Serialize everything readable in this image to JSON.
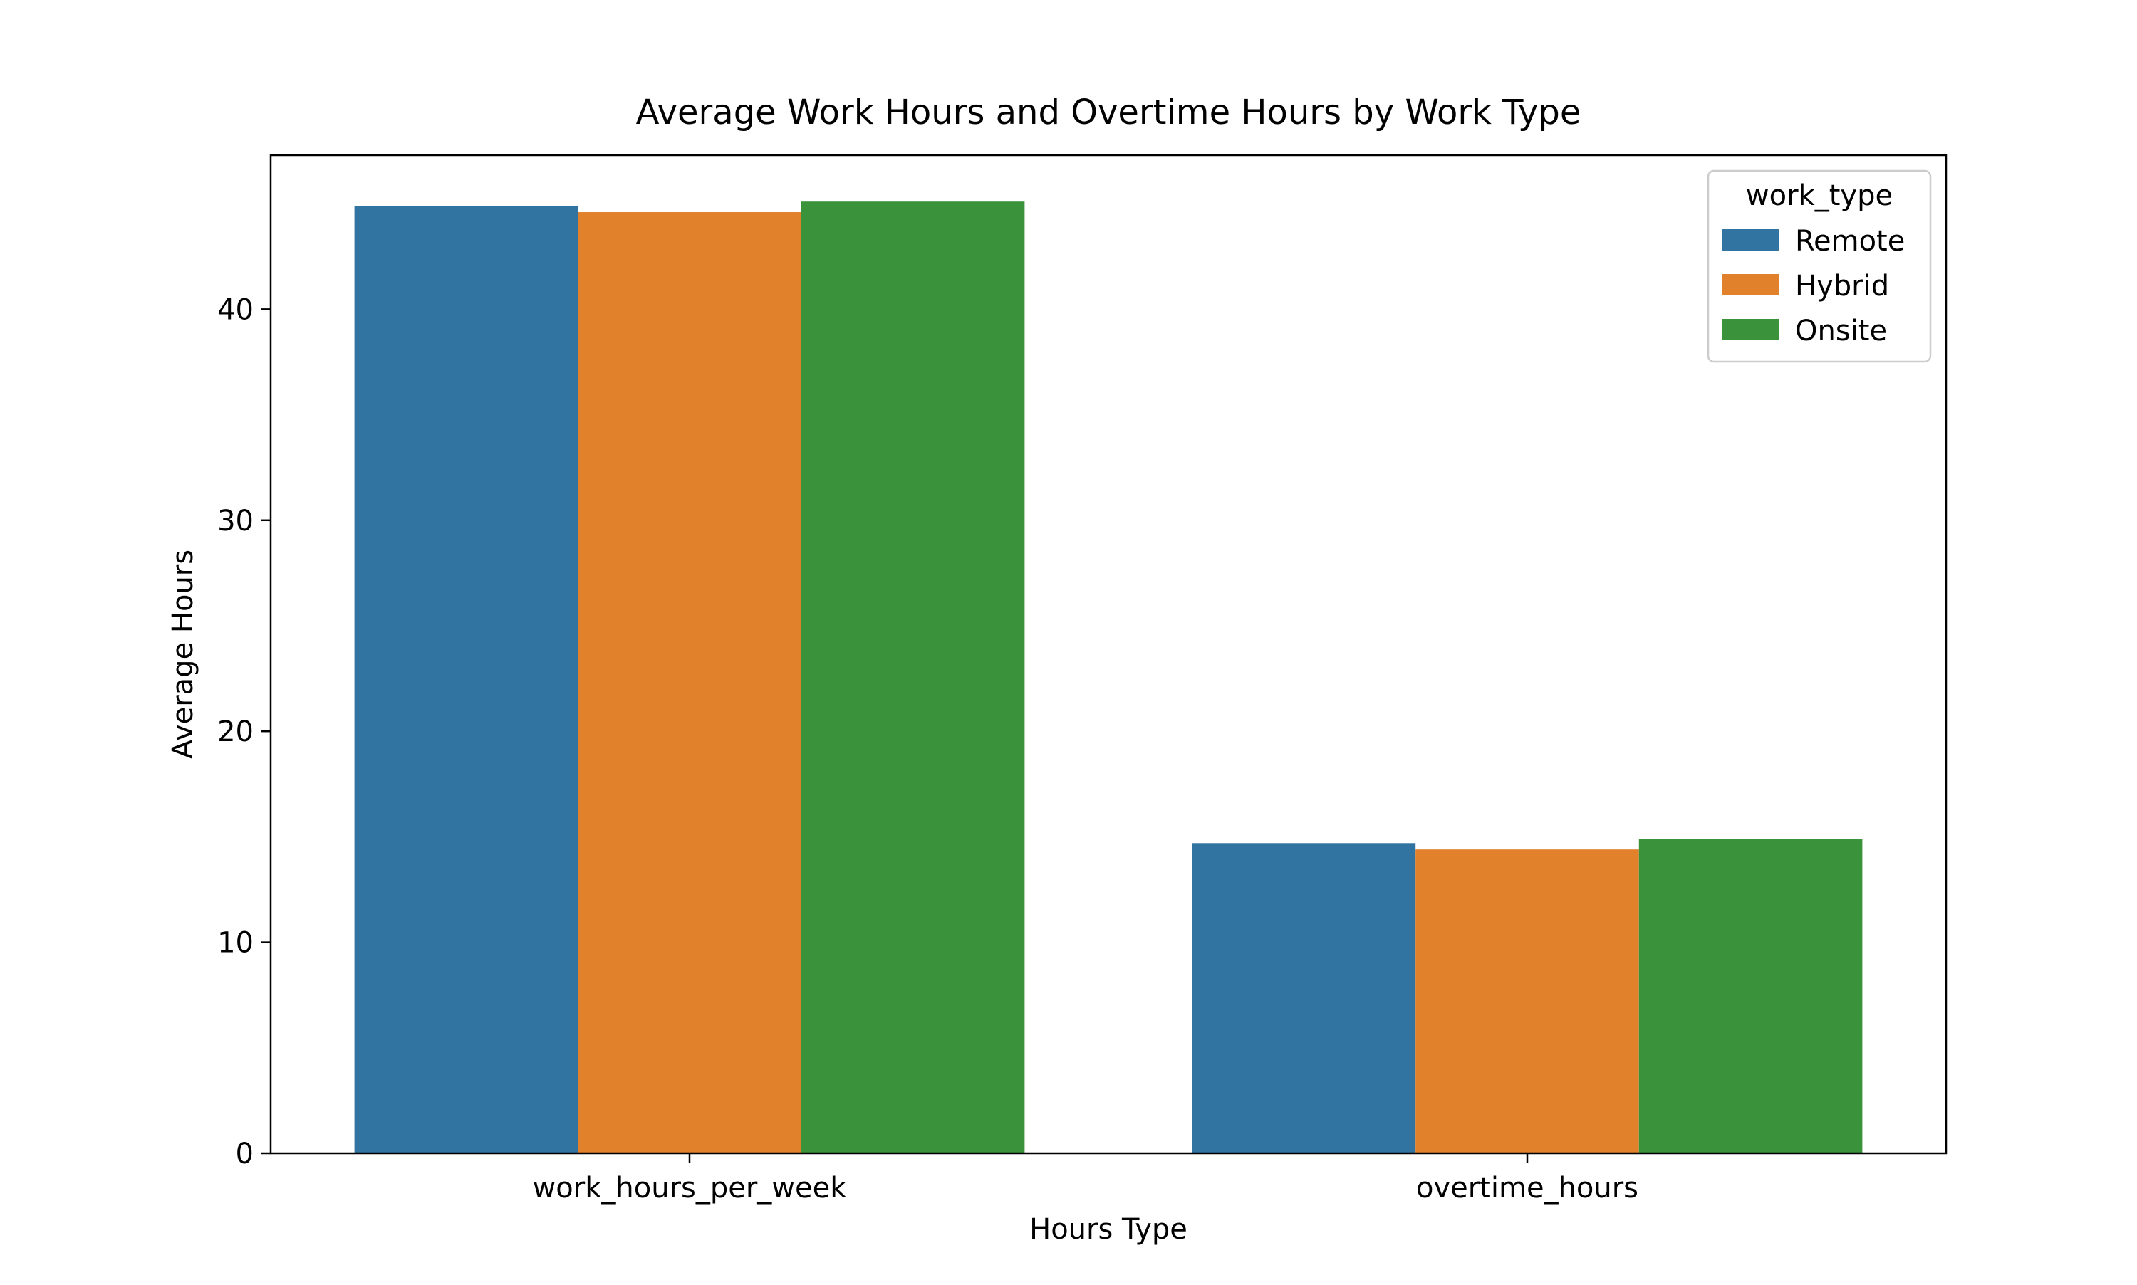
{
  "chart_data": {
    "type": "bar",
    "title": "Average Work Hours and Overtime Hours by Work Type",
    "xlabel": "Hours Type",
    "ylabel": "Average Hours",
    "categories": [
      "work_hours_per_week",
      "overtime_hours"
    ],
    "series": [
      {
        "name": "Remote",
        "color": "#3274a1",
        "values": [
          44.9,
          14.7
        ]
      },
      {
        "name": "Hybrid",
        "color": "#e1812c",
        "values": [
          44.6,
          14.4
        ]
      },
      {
        "name": "Onsite",
        "color": "#3a923a",
        "values": [
          45.1,
          14.9
        ]
      }
    ],
    "ylim": [
      0,
      47.3
    ],
    "yticks": [
      0,
      10,
      20,
      30,
      40
    ],
    "legend": {
      "title": "work_type",
      "placement": "top-right"
    },
    "grid": false
  }
}
